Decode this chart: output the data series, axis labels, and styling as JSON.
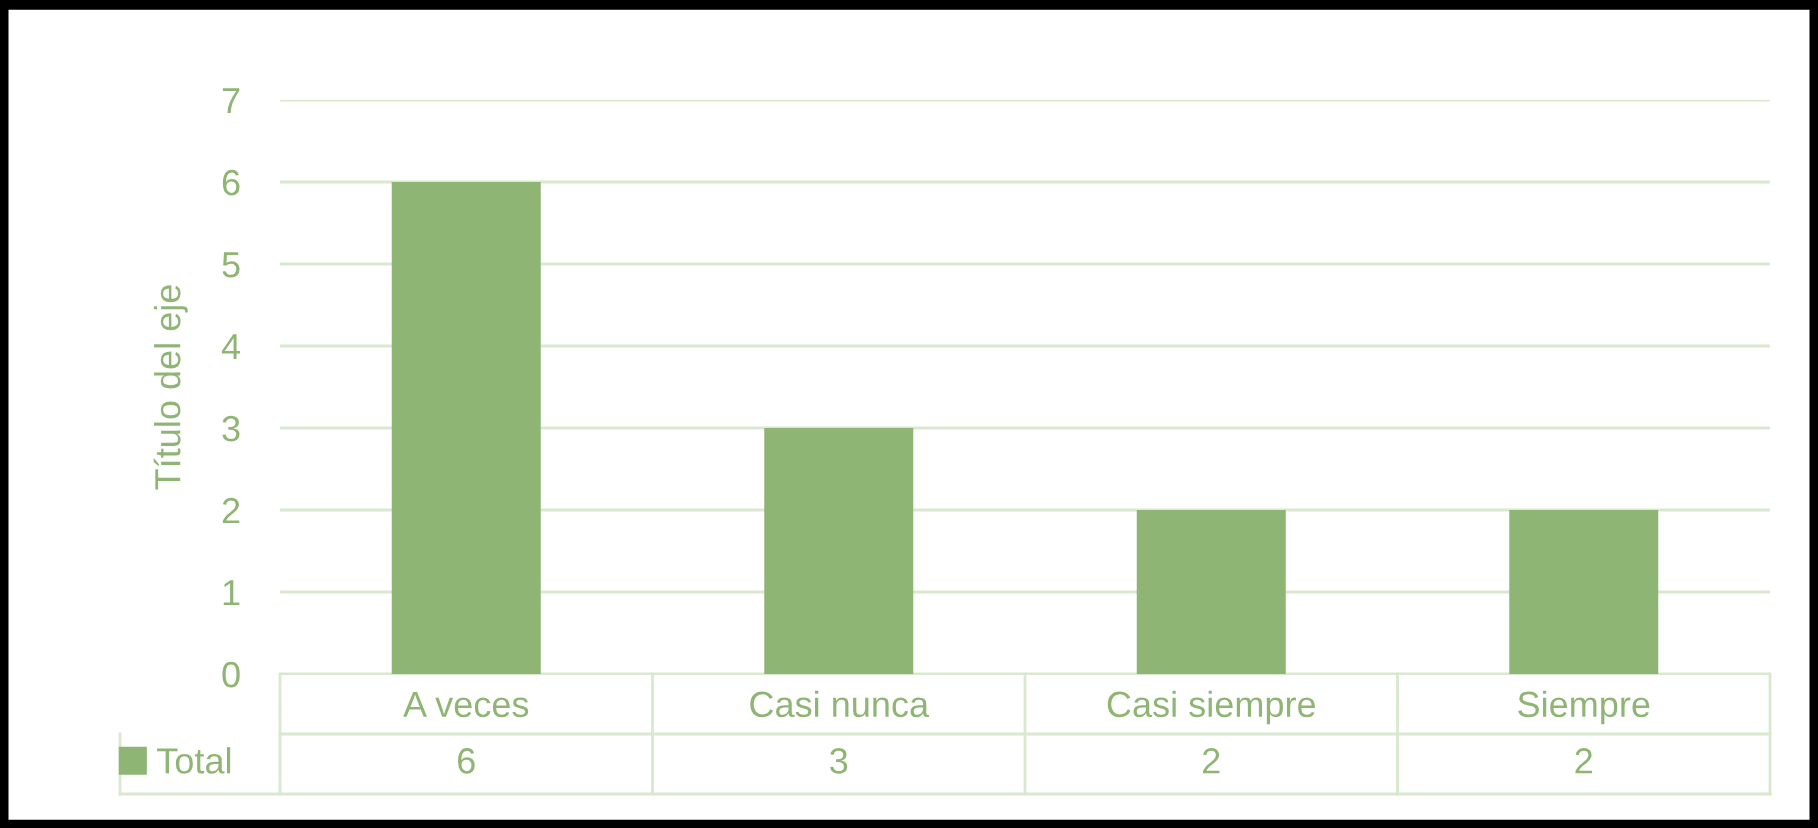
{
  "chart_data": {
    "type": "bar",
    "ylabel": "Título del eje",
    "categories": [
      "A veces",
      "Casi nunca",
      "Casi siempre",
      "Siempre"
    ],
    "series": [
      {
        "name": "Total",
        "color": "#8fb574",
        "values": [
          6,
          3,
          2,
          2
        ]
      }
    ],
    "ylim": [
      0,
      7
    ],
    "yticks": [
      0,
      1,
      2,
      3,
      4,
      5,
      6,
      7
    ],
    "grid": "y",
    "data_labels": true,
    "legend": "bottom left"
  }
}
